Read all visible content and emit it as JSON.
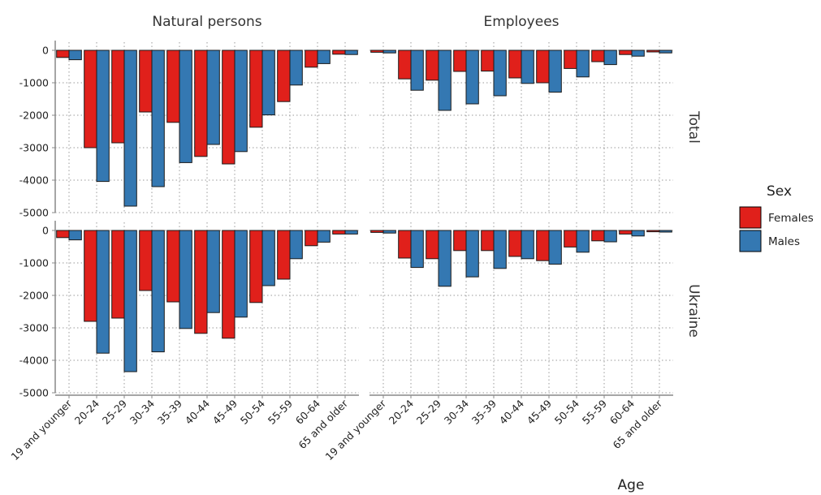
{
  "chart_data": {
    "type": "bar",
    "facet_columns": [
      "Natural persons",
      "Employees"
    ],
    "facet_rows": [
      "Total",
      "Ukraine"
    ],
    "categories": [
      "19 and younger",
      "20-24",
      "25-29",
      "30-34",
      "35-39",
      "40-44",
      "45-49",
      "50-54",
      "55-59",
      "60-64",
      "65 and older"
    ],
    "xlabel": "Age",
    "ylim": [
      -5000,
      0
    ],
    "yticks": [
      0,
      -1000,
      -2000,
      -3000,
      -4000,
      -5000
    ],
    "legend": {
      "title": "Sex",
      "position": "right"
    },
    "colors": {
      "Females": "#e0201b",
      "Males": "#3478b2"
    },
    "grid": true,
    "panels": [
      {
        "column": "Natural persons",
        "row": "Total",
        "series": [
          {
            "name": "Females",
            "values": [
              -220,
              -3000,
              -2850,
              -1900,
              -2220,
              -3270,
              -3500,
              -2370,
              -1580,
              -520,
              -120
            ]
          },
          {
            "name": "Males",
            "values": [
              -290,
              -4040,
              -4800,
              -4200,
              -3460,
              -2900,
              -3120,
              -1990,
              -1070,
              -410,
              -130
            ]
          }
        ]
      },
      {
        "column": "Employees",
        "row": "Total",
        "series": [
          {
            "name": "Females",
            "values": [
              -60,
              -880,
              -920,
              -650,
              -640,
              -850,
              -1000,
              -560,
              -350,
              -130,
              -50
            ]
          },
          {
            "name": "Males",
            "values": [
              -80,
              -1230,
              -1850,
              -1650,
              -1400,
              -1020,
              -1290,
              -820,
              -440,
              -180,
              -80
            ]
          }
        ]
      },
      {
        "column": "Natural persons",
        "row": "Ukraine",
        "series": [
          {
            "name": "Females",
            "values": [
              -220,
              -2800,
              -2700,
              -1850,
              -2200,
              -3170,
              -3320,
              -2220,
              -1500,
              -470,
              -110
            ]
          },
          {
            "name": "Males",
            "values": [
              -290,
              -3780,
              -4350,
              -3740,
              -3020,
              -2530,
              -2670,
              -1700,
              -870,
              -360,
              -110
            ]
          }
        ]
      },
      {
        "column": "Employees",
        "row": "Ukraine",
        "series": [
          {
            "name": "Females",
            "values": [
              -60,
              -850,
              -870,
              -620,
              -620,
              -800,
              -930,
              -510,
              -320,
              -110,
              -40
            ]
          },
          {
            "name": "Males",
            "values": [
              -80,
              -1140,
              -1720,
              -1430,
              -1170,
              -870,
              -1040,
              -670,
              -350,
              -170,
              -50
            ]
          }
        ]
      }
    ]
  }
}
